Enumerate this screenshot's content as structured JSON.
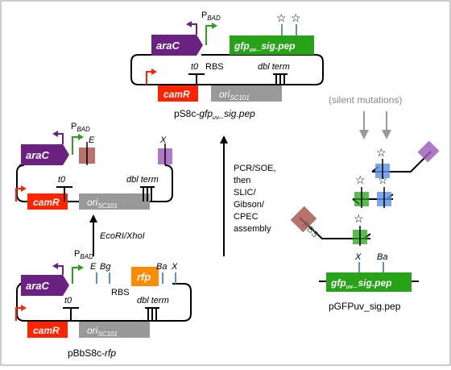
{
  "labels": {
    "araC": "araC",
    "camR": "camR",
    "rfp": "rfp",
    "ori": "ori",
    "ori_sub": "SC101",
    "gfp": "gfp",
    "gfp_sub": "uv",
    "sig_pep": "_sig.pep",
    "p": "P",
    "p_sub": "BAD",
    "rbs": "RBS",
    "t0": "t0",
    "dbl_term": "dbl term",
    "E": "E",
    "X": "X",
    "Bg": "Bg",
    "Ba": "Ba",
    "rbs_rotated": "RBS"
  },
  "plasmids": {
    "top": "pS8c-",
    "top_italic": "gfp",
    "top_sub": "uv",
    "top_tail": "_sig.pep",
    "bottom": "pBbS8c-",
    "bottom_italic": "rfp",
    "right": "pGFPuv_sig.pep"
  },
  "steps": {
    "digest": "EcoRI/XhoI",
    "assembly": [
      "PCR/SOE,",
      "then",
      "SLIC/",
      "Gibson/",
      "CPEC",
      "assembly"
    ],
    "silent": "(silent mutations)"
  },
  "colors": {
    "araC": "#6b2182",
    "camR": "#ff2400",
    "gfp": "#27a219",
    "ori": "#999999",
    "rfp": "#ff8c00",
    "site_red": "#a85a52",
    "site_purple": "#9b59b6",
    "site_blue": "#5b8fe6"
  }
}
